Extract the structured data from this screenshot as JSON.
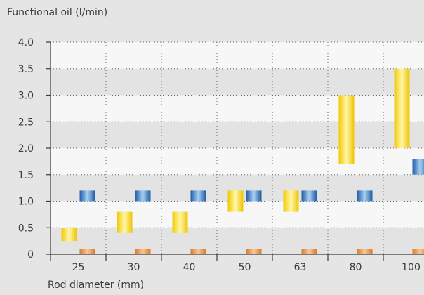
{
  "chart_data": {
    "type": "bar",
    "ylabel": "Functional oil (l/min)",
    "xlabel": "Rod diameter (mm)",
    "categories": [
      "25",
      "30",
      "40",
      "50",
      "63",
      "80",
      "100"
    ],
    "y_ticks": [
      "0",
      "0.5",
      "1.0",
      "1.5",
      "2.0",
      "2.5",
      "3.0",
      "3.5",
      "4.0"
    ],
    "y_tick_values": [
      0,
      0.5,
      1.0,
      1.5,
      2.0,
      2.5,
      3.0,
      3.5,
      4.0
    ],
    "ylim": [
      0,
      4.0
    ],
    "grid": true,
    "series": [
      {
        "color": "#f5d21e",
        "ranges": [
          [
            0.25,
            0.5
          ],
          [
            0.4,
            0.8
          ],
          [
            0.4,
            0.8
          ],
          [
            0.8,
            1.2
          ],
          [
            0.8,
            1.2
          ],
          [
            1.7,
            3.0
          ],
          [
            2.0,
            3.5
          ]
        ]
      },
      {
        "color": "#2f72b8",
        "ranges": [
          [
            1.0,
            1.2
          ],
          [
            1.0,
            1.2
          ],
          [
            1.0,
            1.2
          ],
          [
            1.0,
            1.2
          ],
          [
            1.0,
            1.2
          ],
          [
            1.0,
            1.2
          ],
          [
            1.5,
            1.8
          ]
        ]
      },
      {
        "color": "#e08a3c",
        "ranges": [
          [
            0,
            0.1
          ],
          [
            0,
            0.1
          ],
          [
            0,
            0.1
          ],
          [
            0,
            0.1
          ],
          [
            0,
            0.1
          ],
          [
            0,
            0.1
          ],
          [
            0,
            0.1
          ]
        ]
      }
    ]
  }
}
